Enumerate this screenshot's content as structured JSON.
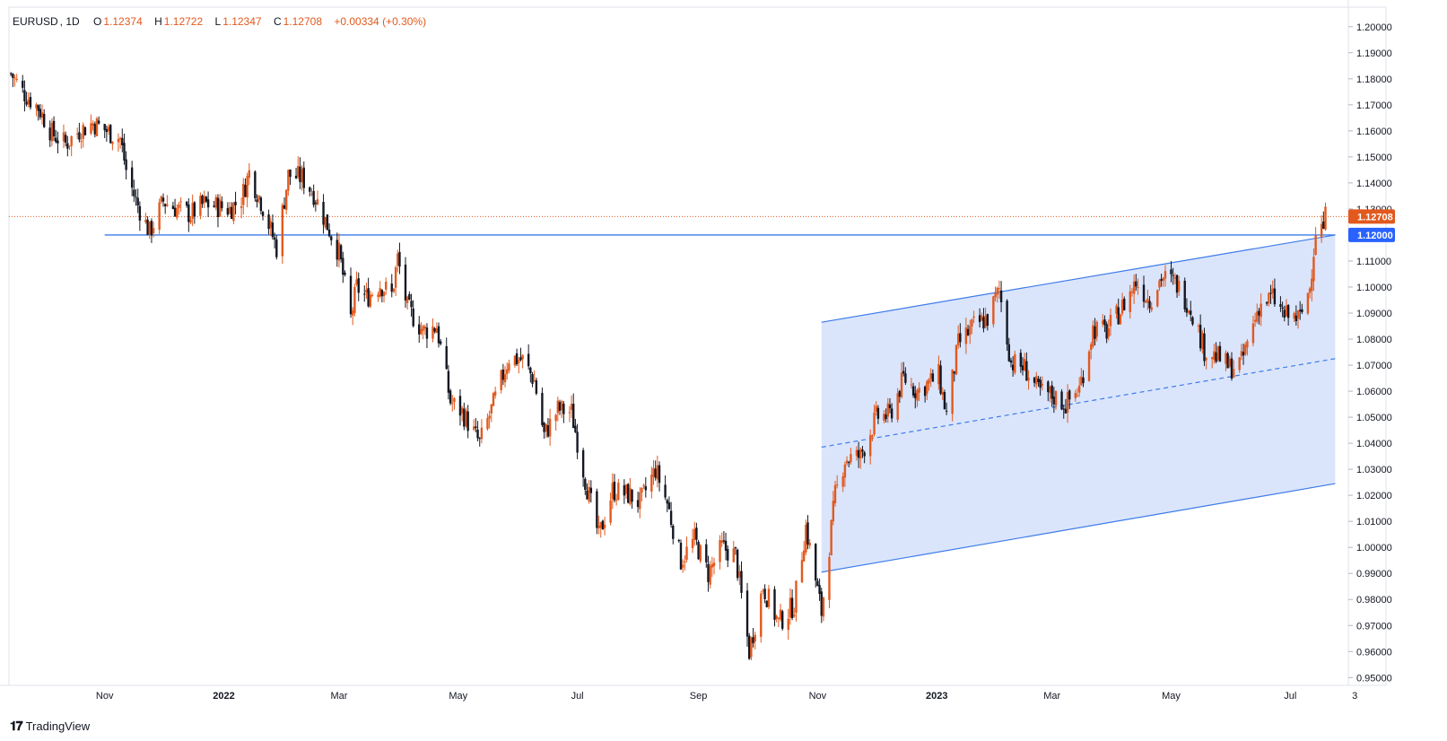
{
  "header": {
    "symbol": "EURUSD",
    "interval": "1D",
    "open_label": "O",
    "open": "1.12374",
    "high_label": "H",
    "high": "1.12722",
    "low_label": "L",
    "low": "1.12347",
    "close_label": "C",
    "close": "1.12708",
    "change": "+0.00334 (+0.30%)"
  },
  "brand": {
    "name": "TradingView",
    "logo_icon": "tradingview-logo-icon"
  },
  "colors": {
    "up": "#e2591e",
    "down": "#131722",
    "channel_line": "#3d7be8",
    "channel_fill": "#d4e0fb",
    "price_tag": "#e2591e",
    "level_tag": "#2962ff"
  },
  "chart_data": {
    "type": "candlestick",
    "ylim": [
      0.947,
      1.2075
    ],
    "y_ticks": [
      "1.20000",
      "1.19000",
      "1.18000",
      "1.17000",
      "1.16000",
      "1.15000",
      "1.14000",
      "1.13000",
      "1.12000",
      "1.11000",
      "1.10000",
      "1.09000",
      "1.08000",
      "1.07000",
      "1.06000",
      "1.05000",
      "1.04000",
      "1.03000",
      "1.02000",
      "1.01000",
      "1.00000",
      "0.99000",
      "0.98000",
      "0.97000",
      "0.96000",
      "0.95000"
    ],
    "x_ticks": [
      {
        "label": "Nov",
        "date": "2021-11-01",
        "bold": false
      },
      {
        "label": "2022",
        "date": "2022-01-01",
        "bold": true
      },
      {
        "label": "Mar",
        "date": "2022-03-01",
        "bold": false
      },
      {
        "label": "May",
        "date": "2022-05-01",
        "bold": false
      },
      {
        "label": "Jul",
        "date": "2022-07-01",
        "bold": false
      },
      {
        "label": "Sep",
        "date": "2022-09-01",
        "bold": false
      },
      {
        "label": "Nov",
        "date": "2022-11-01",
        "bold": false
      },
      {
        "label": "2023",
        "date": "2023-01-01",
        "bold": true
      },
      {
        "label": "Mar",
        "date": "2023-03-01",
        "bold": false
      },
      {
        "label": "May",
        "date": "2023-05-01",
        "bold": false
      },
      {
        "label": "Jul",
        "date": "2023-07-01",
        "bold": false
      },
      {
        "label": "3",
        "date": "2023-08-03",
        "bold": false
      }
    ],
    "x_range": [
      "2021-09-13",
      "2023-08-19"
    ],
    "current_price": {
      "value": 1.12708,
      "label": "1.12708"
    },
    "horizontal_level": {
      "value": 1.12,
      "label": "1.12000",
      "start": "2021-11-01",
      "end": "2023-07-24"
    },
    "channel": {
      "upper": [
        {
          "date": "2022-11-03",
          "value": 1.0865
        },
        {
          "date": "2023-07-24",
          "value": 1.12
        }
      ],
      "middle": [
        {
          "date": "2022-11-03",
          "value": 1.0385
        },
        {
          "date": "2023-07-24",
          "value": 1.0725
        }
      ],
      "lower": [
        {
          "date": "2022-11-03",
          "value": 0.9905
        },
        {
          "date": "2023-07-24",
          "value": 1.0245
        }
      ]
    },
    "series_anchors": [
      {
        "date": "2021-09-14",
        "value": 1.182
      },
      {
        "date": "2021-09-20",
        "value": 1.175
      },
      {
        "date": "2021-09-28",
        "value": 1.169
      },
      {
        "date": "2021-10-05",
        "value": 1.159
      },
      {
        "date": "2021-10-12",
        "value": 1.155
      },
      {
        "date": "2021-10-19",
        "value": 1.16
      },
      {
        "date": "2021-10-26",
        "value": 1.163
      },
      {
        "date": "2021-11-02",
        "value": 1.16
      },
      {
        "date": "2021-11-09",
        "value": 1.157
      },
      {
        "date": "2021-11-12",
        "value": 1.145
      },
      {
        "date": "2021-11-17",
        "value": 1.133
      },
      {
        "date": "2021-11-24",
        "value": 1.121
      },
      {
        "date": "2021-12-01",
        "value": 1.133
      },
      {
        "date": "2021-12-08",
        "value": 1.13
      },
      {
        "date": "2021-12-15",
        "value": 1.128
      },
      {
        "date": "2021-12-22",
        "value": 1.132
      },
      {
        "date": "2022-01-04",
        "value": 1.13
      },
      {
        "date": "2022-01-10",
        "value": 1.134
      },
      {
        "date": "2022-01-14",
        "value": 1.144
      },
      {
        "date": "2022-01-20",
        "value": 1.133
      },
      {
        "date": "2022-01-28",
        "value": 1.115
      },
      {
        "date": "2022-02-03",
        "value": 1.143
      },
      {
        "date": "2022-02-10",
        "value": 1.142
      },
      {
        "date": "2022-02-16",
        "value": 1.136
      },
      {
        "date": "2022-02-24",
        "value": 1.122
      },
      {
        "date": "2022-03-01",
        "value": 1.113
      },
      {
        "date": "2022-03-07",
        "value": 1.088
      },
      {
        "date": "2022-03-10",
        "value": 1.1
      },
      {
        "date": "2022-03-15",
        "value": 1.096
      },
      {
        "date": "2022-03-22",
        "value": 1.101
      },
      {
        "date": "2022-03-28",
        "value": 1.097
      },
      {
        "date": "2022-03-31",
        "value": 1.111
      },
      {
        "date": "2022-04-05",
        "value": 1.092
      },
      {
        "date": "2022-04-13",
        "value": 1.083
      },
      {
        "date": "2022-04-20",
        "value": 1.085
      },
      {
        "date": "2022-04-27",
        "value": 1.056
      },
      {
        "date": "2022-05-03",
        "value": 1.052
      },
      {
        "date": "2022-05-12",
        "value": 1.04
      },
      {
        "date": "2022-05-19",
        "value": 1.055
      },
      {
        "date": "2022-05-27",
        "value": 1.073
      },
      {
        "date": "2022-06-03",
        "value": 1.072
      },
      {
        "date": "2022-06-09",
        "value": 1.064
      },
      {
        "date": "2022-06-14",
        "value": 1.043
      },
      {
        "date": "2022-06-21",
        "value": 1.053
      },
      {
        "date": "2022-06-28",
        "value": 1.052
      },
      {
        "date": "2022-07-05",
        "value": 1.026
      },
      {
        "date": "2022-07-12",
        "value": 1.004
      },
      {
        "date": "2022-07-19",
        "value": 1.022
      },
      {
        "date": "2022-07-28",
        "value": 1.02
      },
      {
        "date": "2022-08-02",
        "value": 1.017
      },
      {
        "date": "2022-08-10",
        "value": 1.03
      },
      {
        "date": "2022-08-16",
        "value": 1.017
      },
      {
        "date": "2022-08-23",
        "value": 0.995
      },
      {
        "date": "2022-08-30",
        "value": 1.003
      },
      {
        "date": "2022-09-06",
        "value": 0.99
      },
      {
        "date": "2022-09-13",
        "value": 1.0
      },
      {
        "date": "2022-09-20",
        "value": 0.997
      },
      {
        "date": "2022-09-27",
        "value": 0.96
      },
      {
        "date": "2022-10-04",
        "value": 0.985
      },
      {
        "date": "2022-10-12",
        "value": 0.971
      },
      {
        "date": "2022-10-20",
        "value": 0.978
      },
      {
        "date": "2022-10-26",
        "value": 1.008
      },
      {
        "date": "2022-11-03",
        "value": 0.975
      },
      {
        "date": "2022-11-10",
        "value": 1.02
      },
      {
        "date": "2022-11-15",
        "value": 1.034
      },
      {
        "date": "2022-11-23",
        "value": 1.035
      },
      {
        "date": "2022-12-01",
        "value": 1.05
      },
      {
        "date": "2022-12-08",
        "value": 1.051
      },
      {
        "date": "2022-12-15",
        "value": 1.065
      },
      {
        "date": "2022-12-22",
        "value": 1.06
      },
      {
        "date": "2023-01-02",
        "value": 1.066
      },
      {
        "date": "2023-01-06",
        "value": 1.051
      },
      {
        "date": "2023-01-12",
        "value": 1.078
      },
      {
        "date": "2023-01-20",
        "value": 1.085
      },
      {
        "date": "2023-01-27",
        "value": 1.088
      },
      {
        "date": "2023-02-02",
        "value": 1.099
      },
      {
        "date": "2023-02-08",
        "value": 1.071
      },
      {
        "date": "2023-02-15",
        "value": 1.069
      },
      {
        "date": "2023-02-22",
        "value": 1.06
      },
      {
        "date": "2023-03-02",
        "value": 1.058
      },
      {
        "date": "2023-03-08",
        "value": 1.055
      },
      {
        "date": "2023-03-15",
        "value": 1.061
      },
      {
        "date": "2023-03-22",
        "value": 1.084
      },
      {
        "date": "2023-03-29",
        "value": 1.083
      },
      {
        "date": "2023-04-05",
        "value": 1.091
      },
      {
        "date": "2023-04-13",
        "value": 1.102
      },
      {
        "date": "2023-04-20",
        "value": 1.095
      },
      {
        "date": "2023-04-26",
        "value": 1.104
      },
      {
        "date": "2023-05-04",
        "value": 1.101
      },
      {
        "date": "2023-05-11",
        "value": 1.092
      },
      {
        "date": "2023-05-18",
        "value": 1.076
      },
      {
        "date": "2023-05-25",
        "value": 1.073
      },
      {
        "date": "2023-05-31",
        "value": 1.069
      },
      {
        "date": "2023-06-06",
        "value": 1.071
      },
      {
        "date": "2023-06-15",
        "value": 1.093
      },
      {
        "date": "2023-06-22",
        "value": 1.096
      },
      {
        "date": "2023-06-28",
        "value": 1.089
      },
      {
        "date": "2023-07-06",
        "value": 1.088
      },
      {
        "date": "2023-07-11",
        "value": 1.1
      },
      {
        "date": "2023-07-14",
        "value": 1.122
      },
      {
        "date": "2023-07-18",
        "value": 1.123
      },
      {
        "date": "2023-07-19",
        "value": 1.127
      }
    ]
  }
}
